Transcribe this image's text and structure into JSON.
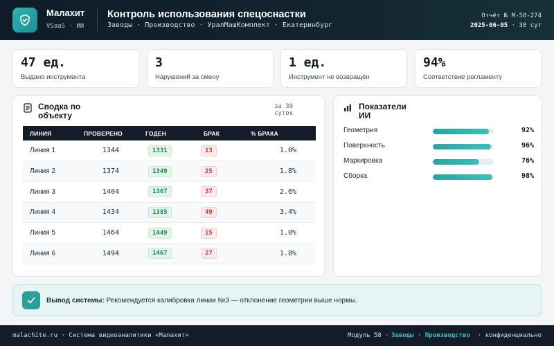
{
  "header": {
    "brand_name": "Малахит",
    "brand_sub": "VSaaS · ИИ",
    "title": "Контроль использования спецоснастки",
    "breadcrumbs": [
      "Заводы",
      "Производство",
      "УралМашКомплект",
      "Екатеринбург"
    ],
    "report_no": "Отчёт № M-58-274",
    "report_date": "2025-06-05",
    "report_period": "· 30 сут"
  },
  "kpis": [
    {
      "value": "47 ед.",
      "label": "Выдано инструмента"
    },
    {
      "value": "3",
      "label": "Нарушений за смену"
    },
    {
      "value": "1 ед.",
      "label": "Инструмент не возвращён"
    },
    {
      "value": "94%",
      "label": "Соответствие регламенту"
    }
  ],
  "summary": {
    "title": "Сводка по объекту",
    "period": "за 30 суток",
    "columns": [
      "ЛИНИЯ",
      "ПРОВЕРЕНО",
      "ГОДЕН",
      "БРАК",
      "% БРАКА"
    ],
    "rows": [
      {
        "line": "Линия 1",
        "checked": "1344",
        "good": "1331",
        "defect": "13",
        "pct": "1.0%"
      },
      {
        "line": "Линия 2",
        "checked": "1374",
        "good": "1349",
        "defect": "25",
        "pct": "1.8%"
      },
      {
        "line": "Линия 3",
        "checked": "1404",
        "good": "1367",
        "defect": "37",
        "pct": "2.6%"
      },
      {
        "line": "Линия 4",
        "checked": "1434",
        "good": "1385",
        "defect": "49",
        "pct": "3.4%"
      },
      {
        "line": "Линия 5",
        "checked": "1464",
        "good": "1449",
        "defect": "15",
        "pct": "1.0%"
      },
      {
        "line": "Линия 6",
        "checked": "1494",
        "good": "1467",
        "defect": "27",
        "pct": "1.8%"
      }
    ]
  },
  "ai_metrics": {
    "title": "Показатели ИИ",
    "items": [
      {
        "label": "Геометрия",
        "value": "92%",
        "fill": 0.92
      },
      {
        "label": "Поверхность",
        "value": "96%",
        "fill": 0.96
      },
      {
        "label": "Маркировка",
        "value": "76%",
        "fill": 0.76
      },
      {
        "label": "Сборка",
        "value": "98%",
        "fill": 0.98
      }
    ]
  },
  "conclusion": {
    "label": "Вывод системы:",
    "text": "Рекомендуется калибровка линии №3 — отклонение геометрии выше нормы."
  },
  "footer": {
    "left": "malachite.ru · Система видеоаналитики «Малахит»",
    "module": "Модуль 58 ·",
    "link": "Заводы · Производство",
    "confidential": "· конфиденциально"
  },
  "colors": {
    "accent": "#2aa3a3",
    "good": "#1d8b48",
    "bad": "#c23b3b",
    "dark": "#141c29"
  }
}
